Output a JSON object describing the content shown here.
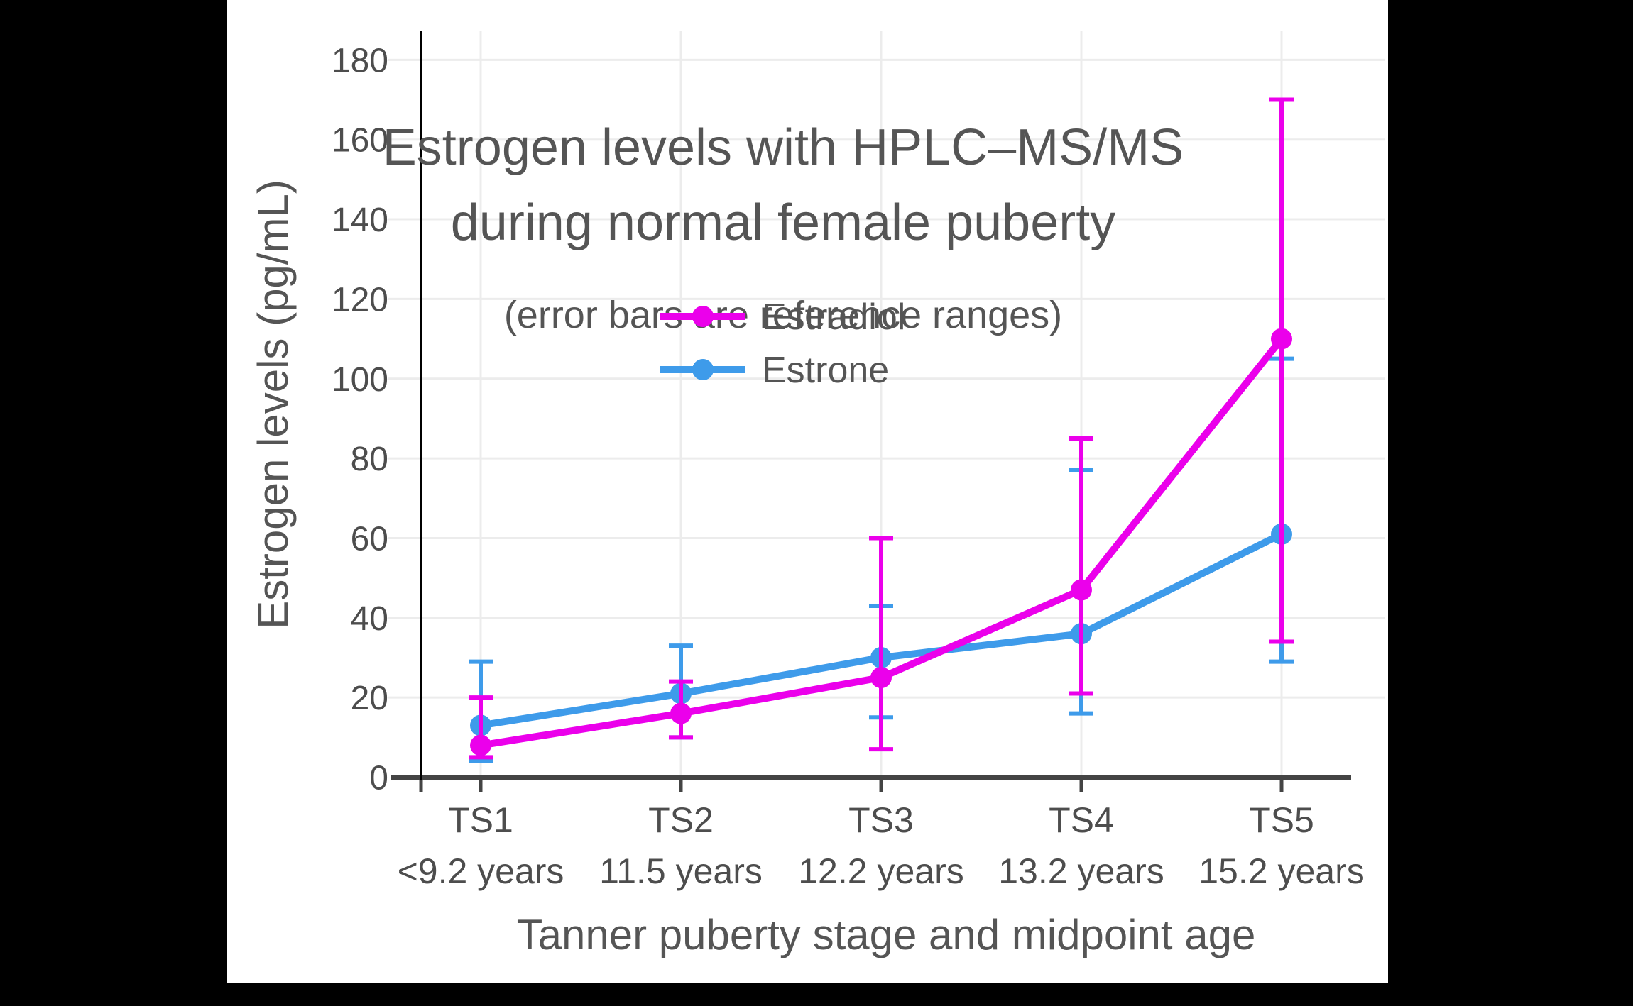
{
  "window": {
    "background_color": "#000000",
    "canvas_color": "#ffffff"
  },
  "chart_data": {
    "type": "line",
    "title_line1": "Estrogen levels with HPLC–MS/MS",
    "title_line2": "during normal female puberty",
    "subtitle": "(error bars are reference ranges)",
    "xlabel": "Tanner puberty stage and midpoint age",
    "ylabel": "Estrogen levels (pg/mL)",
    "ylim": [
      0,
      187
    ],
    "y_ticks": [
      0,
      20,
      40,
      60,
      80,
      100,
      120,
      140,
      160,
      180
    ],
    "grid": true,
    "legend_position": "upper-left-inside",
    "error_bar_meaning": "reference ranges",
    "x_categories": [
      {
        "stage": "TS1",
        "age": "<9.2 years"
      },
      {
        "stage": "TS2",
        "age": "11.5 years"
      },
      {
        "stage": "TS3",
        "age": "12.2 years"
      },
      {
        "stage": "TS4",
        "age": "13.2 years"
      },
      {
        "stage": "TS5",
        "age": "15.2 years"
      }
    ],
    "series": [
      {
        "name": "Estradiol",
        "color": "#EB00EB",
        "values": [
          8,
          16,
          25,
          47,
          110
        ],
        "range_low": [
          5,
          10,
          7,
          21,
          34
        ],
        "range_high": [
          20,
          24,
          60,
          85,
          170
        ]
      },
      {
        "name": "Estrone",
        "color": "#3E9BEA",
        "values": [
          13,
          21,
          30,
          36,
          61
        ],
        "range_low": [
          4,
          10,
          15,
          16,
          29
        ],
        "range_high": [
          29,
          33,
          43,
          77,
          105
        ]
      }
    ],
    "colors": {
      "title_text": "#555555",
      "tick_text": "#4d4d4d",
      "gridline": "#ececec",
      "x_axis_line": "#444444",
      "y_axis_line": "#000000"
    }
  }
}
